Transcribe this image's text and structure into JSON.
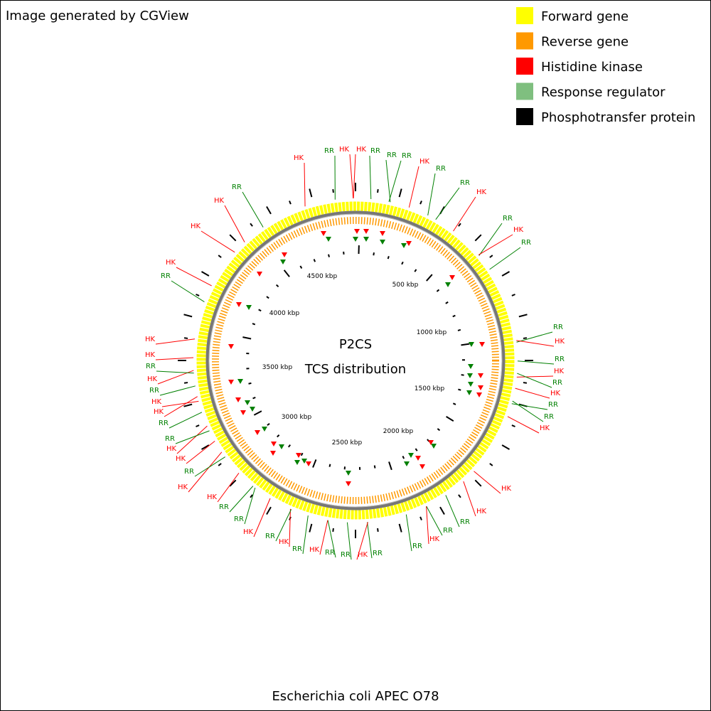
{
  "header": {
    "title": "Image generated by CGView"
  },
  "legend": [
    {
      "label": "Forward gene",
      "color": "#ffff00"
    },
    {
      "label": "Reverse gene",
      "color": "#ff9900"
    },
    {
      "label": "Histidine kinase",
      "color": "#ff0000"
    },
    {
      "label": "Response regulator",
      "color": "#7fbf7f"
    },
    {
      "label": "Phosphotransfer protein",
      "color": "#000000"
    }
  ],
  "center": {
    "title": "P2CS",
    "subtitle": "TCS distribution"
  },
  "tick_labels": [
    "500 kbp",
    "1000 kbp",
    "1500 kbp",
    "2000 kbp",
    "2500 kbp",
    "3000 kbp",
    "3500 kbp",
    "4000 kbp",
    "4500 kbp"
  ],
  "features": [
    "HK",
    "RR",
    "HK",
    "HK",
    "RR",
    "RR",
    "RR",
    "HK",
    "RR",
    "RR",
    "HK",
    "RR",
    "HK",
    "RR",
    "RR",
    "HK",
    "RR",
    "HK",
    "RR",
    "HK",
    "RR",
    "RR",
    "HK",
    "HK",
    "HK",
    "RR",
    "RR",
    "HK",
    "RR",
    "RR",
    "HK",
    "RR",
    "RR",
    "HK",
    "RR",
    "HK",
    "RR",
    "HK",
    "RR",
    "RR",
    "HK",
    "HK",
    "RR",
    "HK",
    "HK",
    "RR",
    "RR",
    "HK",
    "HK",
    "RR",
    "HK",
    "RR",
    "HK",
    "HK",
    "RR",
    "HK",
    "HK",
    "HK",
    "RR"
  ],
  "footer": {
    "organism": "Escherichia coli APEC O78"
  }
}
